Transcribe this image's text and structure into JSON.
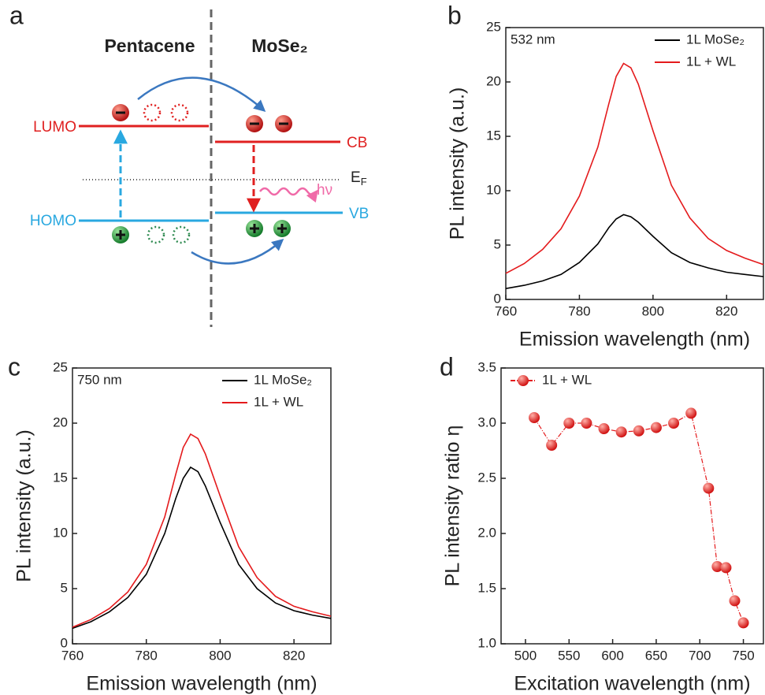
{
  "diagram": {
    "panel_label": "a",
    "left_title": "Pentacene",
    "right_title": "MoSe₂",
    "lumo": "LUMO",
    "homo": "HOMO",
    "cb": "CB",
    "vb": "VB",
    "fermi_symbol": "E",
    "fermi_subscript": "F",
    "photon": "hν"
  },
  "chart_data": [
    {
      "type": "line",
      "panel_label": "b",
      "annotation": "532 nm",
      "x_label": "Emission wavelength (nm)",
      "y_label": "PL intensity (a.u.)",
      "x": [
        760,
        765,
        770,
        775,
        780,
        785,
        788,
        790,
        792,
        794,
        796,
        800,
        805,
        810,
        815,
        820,
        825,
        830
      ],
      "series": [
        {
          "name": "1L MoSe₂",
          "color": "#000000",
          "values": [
            1.0,
            1.3,
            1.7,
            2.3,
            3.4,
            5.1,
            6.6,
            7.4,
            7.8,
            7.6,
            7.1,
            5.8,
            4.3,
            3.4,
            2.9,
            2.5,
            2.3,
            2.1
          ]
        },
        {
          "name": "1L + WL",
          "color": "#e41a1c",
          "values": [
            2.4,
            3.3,
            4.6,
            6.5,
            9.5,
            14.0,
            18.0,
            20.5,
            21.7,
            21.3,
            19.8,
            15.5,
            10.5,
            7.5,
            5.6,
            4.5,
            3.8,
            3.2
          ]
        }
      ],
      "xlim": [
        760,
        830
      ],
      "xticks": [
        760,
        780,
        800,
        820
      ],
      "ylim": [
        0,
        25
      ],
      "yticks": [
        0,
        5,
        10,
        15,
        20,
        25
      ],
      "legend": "upper right",
      "grid": false
    },
    {
      "type": "line",
      "panel_label": "c",
      "annotation": "750 nm",
      "x_label": "Emission wavelength (nm)",
      "y_label": "PL intensity (a.u.)",
      "x": [
        760,
        765,
        770,
        775,
        780,
        785,
        788,
        790,
        792,
        794,
        796,
        800,
        805,
        810,
        815,
        820,
        825,
        830
      ],
      "series": [
        {
          "name": "1L MoSe₂",
          "color": "#000000",
          "values": [
            1.4,
            2.0,
            2.9,
            4.2,
            6.3,
            10.0,
            13.2,
            15.0,
            16.0,
            15.6,
            14.3,
            11.0,
            7.2,
            5.0,
            3.7,
            3.0,
            2.6,
            2.3
          ]
        },
        {
          "name": "1L + WL",
          "color": "#e41a1c",
          "values": [
            1.5,
            2.2,
            3.2,
            4.7,
            7.2,
            11.5,
            15.4,
            17.8,
            19.0,
            18.6,
            17.2,
            13.4,
            8.8,
            6.0,
            4.3,
            3.4,
            2.9,
            2.5
          ]
        }
      ],
      "xlim": [
        760,
        830
      ],
      "xticks": [
        760,
        780,
        800,
        820
      ],
      "ylim": [
        0,
        25
      ],
      "yticks": [
        0,
        5,
        10,
        15,
        20,
        25
      ],
      "legend": "upper right",
      "grid": false
    },
    {
      "type": "scatter",
      "panel_label": "d",
      "x_label": "Excitation wavelength (nm)",
      "y_label": "PL intensity ratio η",
      "x": [
        510,
        530,
        550,
        570,
        590,
        610,
        630,
        650,
        670,
        690,
        710,
        720,
        730,
        740,
        750
      ],
      "series": [
        {
          "name": "1L + WL",
          "color": "#e41a1c",
          "values": [
            3.05,
            2.8,
            3.0,
            3.0,
            2.95,
            2.92,
            2.93,
            2.96,
            3.0,
            3.09,
            2.41,
            1.7,
            1.69,
            1.39,
            1.19
          ]
        }
      ],
      "xlim": [
        472,
        773
      ],
      "xticks": [
        500,
        550,
        600,
        650,
        700,
        750
      ],
      "ylim": [
        1.0,
        3.5
      ],
      "yticks": [
        {
          "value": 1,
          "label": "1.0"
        },
        1.5,
        {
          "value": 2,
          "label": "2.0"
        },
        2.5,
        {
          "value": 3,
          "label": "3.0"
        },
        3.5
      ],
      "legend": "upper left",
      "grid": false
    }
  ]
}
